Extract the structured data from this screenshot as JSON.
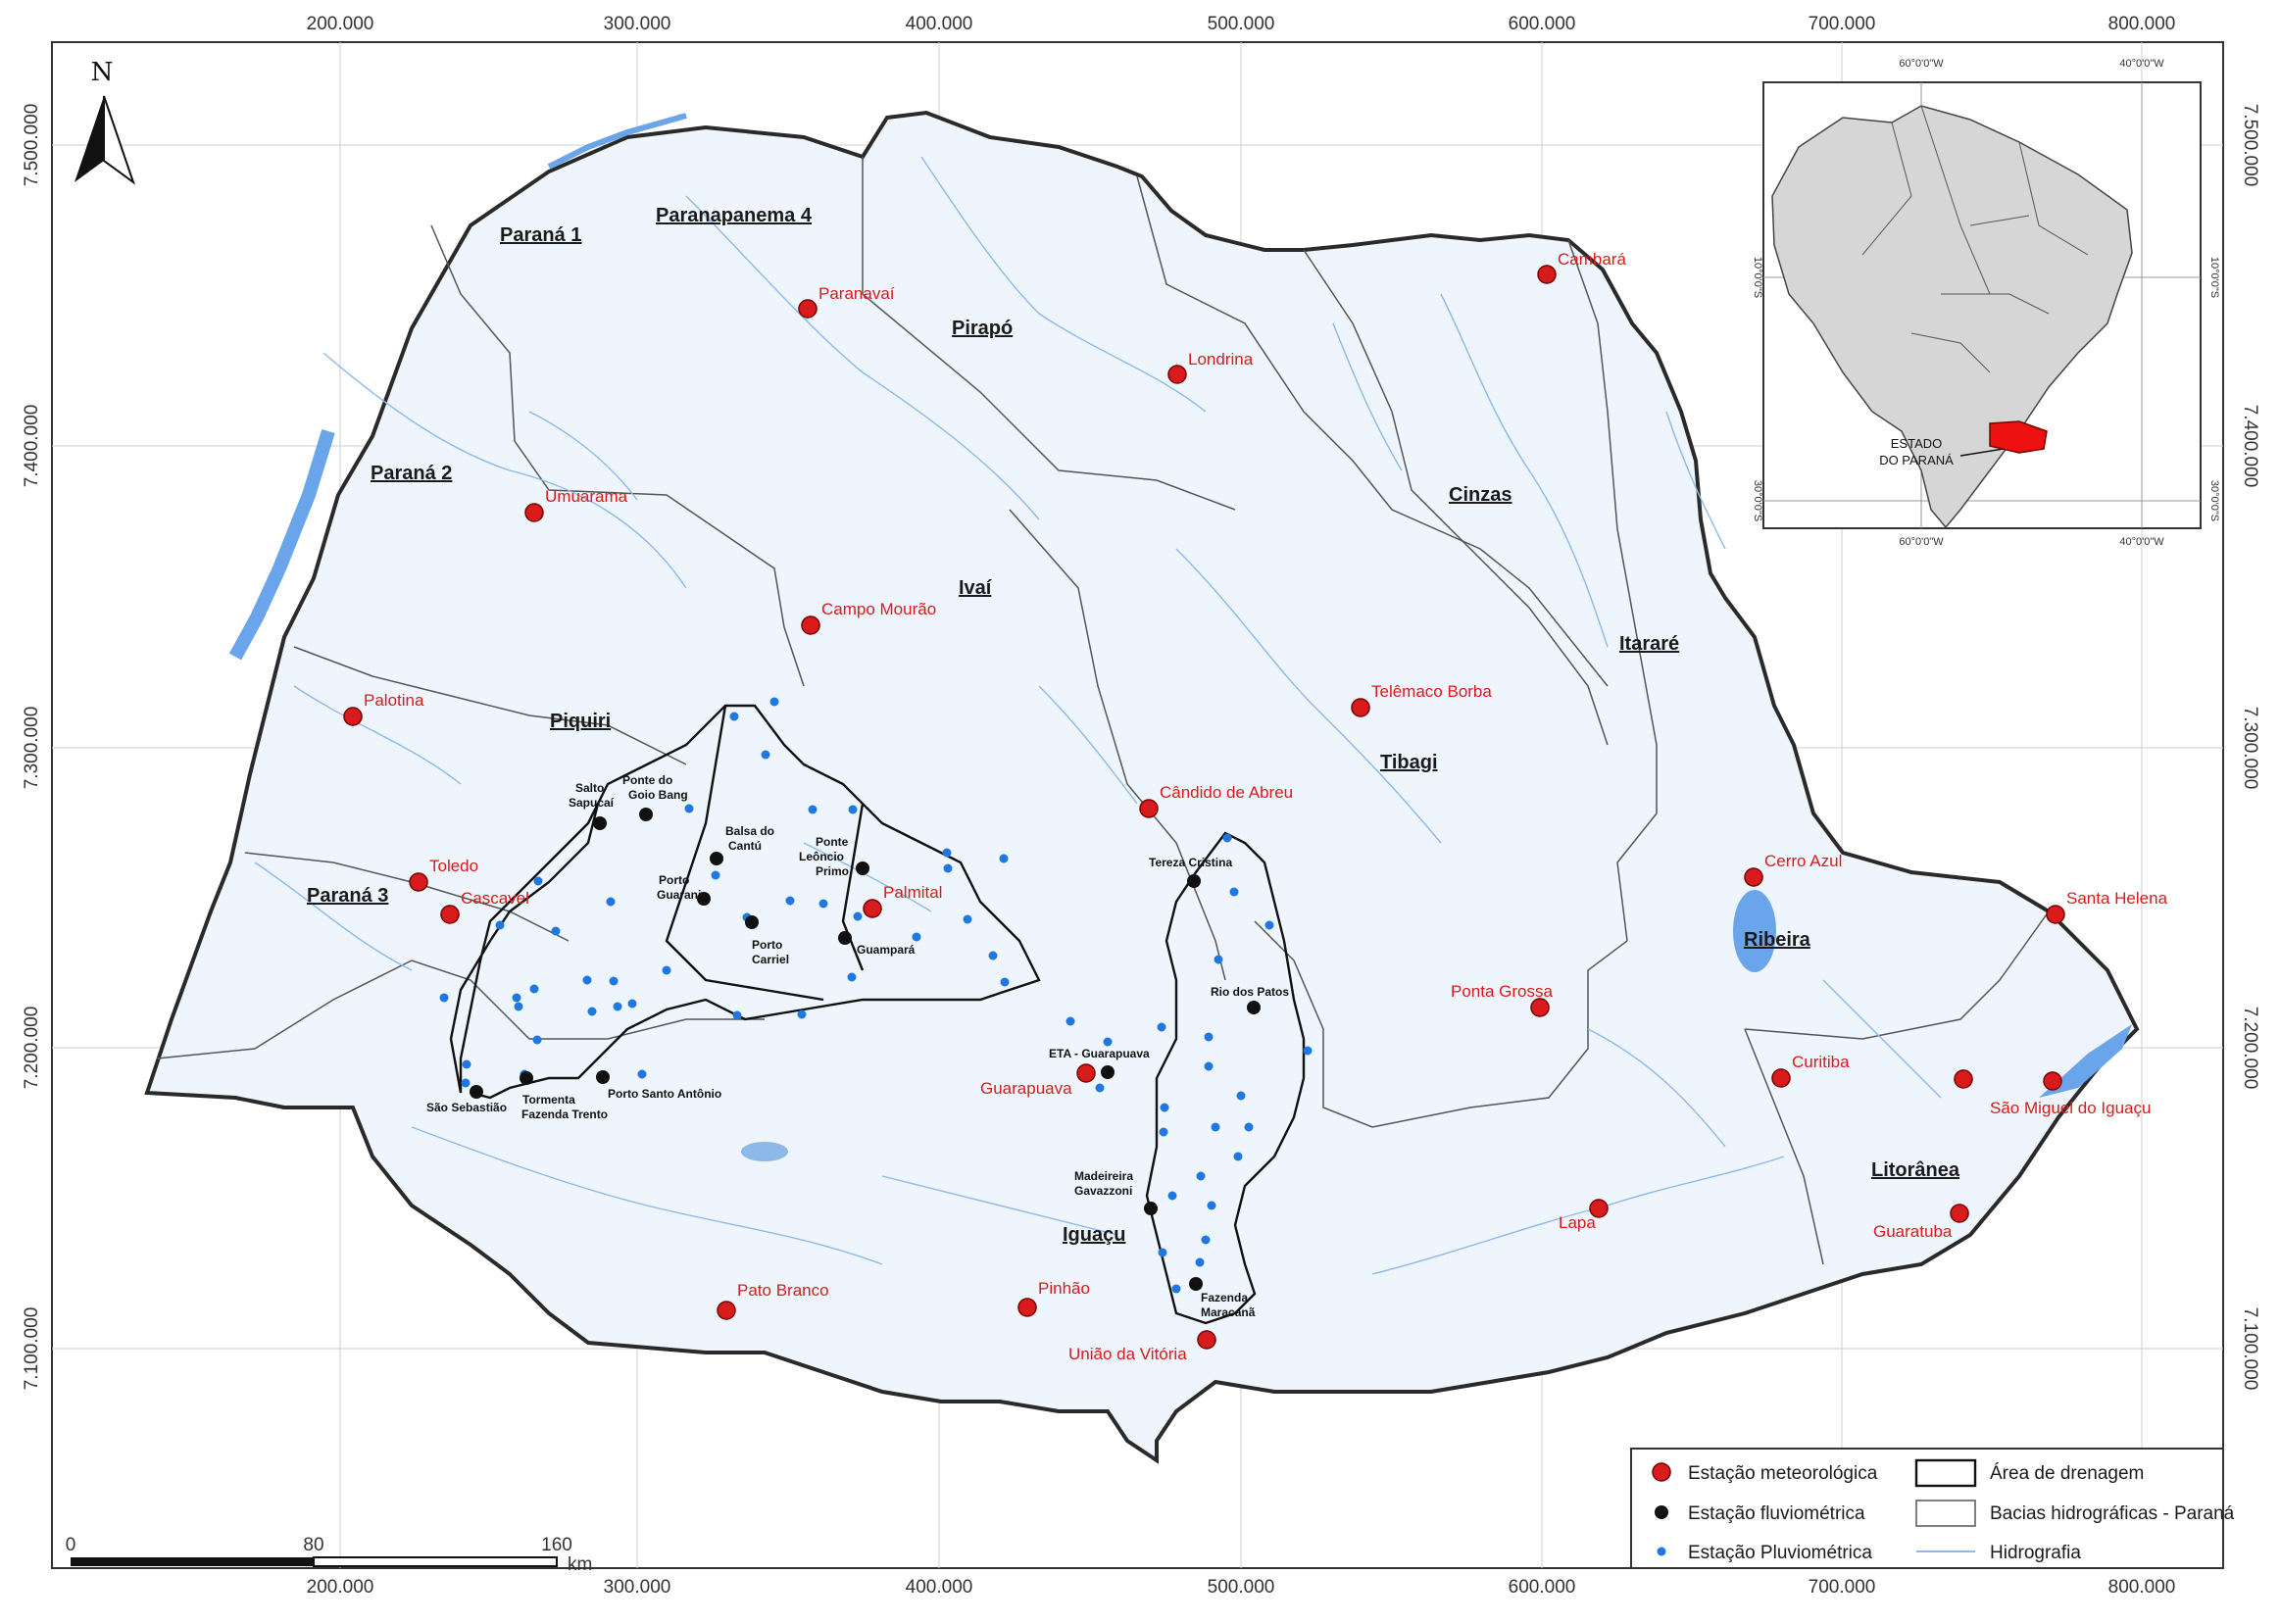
{
  "axes": {
    "x_ticks": [
      "200.000",
      "300.000",
      "400.000",
      "500.000",
      "600.000",
      "700.000",
      "800.000"
    ],
    "y_ticks": [
      "7.500.000",
      "7.400.000",
      "7.300.000",
      "7.200.000",
      "7.100.000"
    ]
  },
  "north_arrow": "N",
  "basins": [
    {
      "name": "Paraná 1"
    },
    {
      "name": "Paranapanema 4"
    },
    {
      "name": "Pirapó"
    },
    {
      "name": "Paraná 2"
    },
    {
      "name": "Cinzas"
    },
    {
      "name": "Ivaí"
    },
    {
      "name": "Itararé"
    },
    {
      "name": "Piquiri"
    },
    {
      "name": "Tibagi"
    },
    {
      "name": "Paraná 3"
    },
    {
      "name": "Ribeira"
    },
    {
      "name": "Litorânea"
    },
    {
      "name": "Iguaçu"
    }
  ],
  "met_stations": [
    {
      "name": "Cambará"
    },
    {
      "name": "Paranavaí"
    },
    {
      "name": "Londrina"
    },
    {
      "name": "Umuarama"
    },
    {
      "name": "Campo Mourão"
    },
    {
      "name": "Palotina"
    },
    {
      "name": "Telêmaco Borba"
    },
    {
      "name": "Cândido de Abreu"
    },
    {
      "name": "Toledo"
    },
    {
      "name": "Cascavel"
    },
    {
      "name": "Palmital"
    },
    {
      "name": "Cerro Azul"
    },
    {
      "name": "Santa Helena"
    },
    {
      "name": "Ponta Grossa"
    },
    {
      "name": "Curitiba"
    },
    {
      "name": "Guarapuava"
    },
    {
      "name": "São Miguel do Iguaçu"
    },
    {
      "name": "Lapa"
    },
    {
      "name": "Guaratuba"
    },
    {
      "name": "Pato Branco"
    },
    {
      "name": "Pinhão"
    },
    {
      "name": "União da Vitória"
    }
  ],
  "flu_stations": [
    {
      "lines": [
        "Ponte do",
        "Goio Bang"
      ]
    },
    {
      "lines": [
        "Salto",
        "Sapucaí"
      ]
    },
    {
      "lines": [
        "Balsa do",
        "Cantú"
      ]
    },
    {
      "lines": [
        "Ponte",
        "Leôncio",
        "Primo"
      ]
    },
    {
      "lines": [
        "Porto",
        "Guarani"
      ]
    },
    {
      "lines": [
        "Porto",
        "Carriel"
      ]
    },
    {
      "lines": [
        "Guampará"
      ]
    },
    {
      "lines": [
        "Tereza Cristina"
      ]
    },
    {
      "lines": [
        "Rio dos Patos"
      ]
    },
    {
      "lines": [
        "ETA - Guarapuava"
      ]
    },
    {
      "lines": [
        "São Sebastião"
      ]
    },
    {
      "lines": [
        "Tormenta",
        "Fazenda Trento"
      ]
    },
    {
      "lines": [
        "Porto Santo Antônio"
      ]
    },
    {
      "lines": [
        "Madeireira",
        "Gavazzoni"
      ]
    },
    {
      "lines": [
        "Fazenda",
        "Maracanã"
      ]
    }
  ],
  "inset": {
    "x_ticks": [
      "60°0'0\"W",
      "40°0'0\"W"
    ],
    "y_ticks": [
      "10°0'0\"S",
      "30°0'0\"S"
    ],
    "label": [
      "ESTADO",
      "DO PARANÁ"
    ]
  },
  "scale_bar": {
    "labels": [
      "0",
      "80",
      "160"
    ],
    "unit": "km"
  },
  "legend": [
    {
      "label": "Estação meteorológica",
      "symbol": "met"
    },
    {
      "label": "Área de drenagem",
      "symbol": "box"
    },
    {
      "label": "Estação fluviométrica",
      "symbol": "flu"
    },
    {
      "label": "Bacias hidrográficas - Paraná",
      "symbol": "box-thin"
    },
    {
      "label": "Estação Pluviométrica",
      "symbol": "pluvio"
    },
    {
      "label": "Hidrografia",
      "symbol": "river"
    }
  ],
  "colors": {
    "met": "#d91b1b",
    "flu": "#111111",
    "pluvio": "#1f78e0",
    "river": "#8db9e8",
    "water": "#6aa4ea",
    "state_fill": "#eef5fc",
    "inset_red": "#ee1111"
  }
}
